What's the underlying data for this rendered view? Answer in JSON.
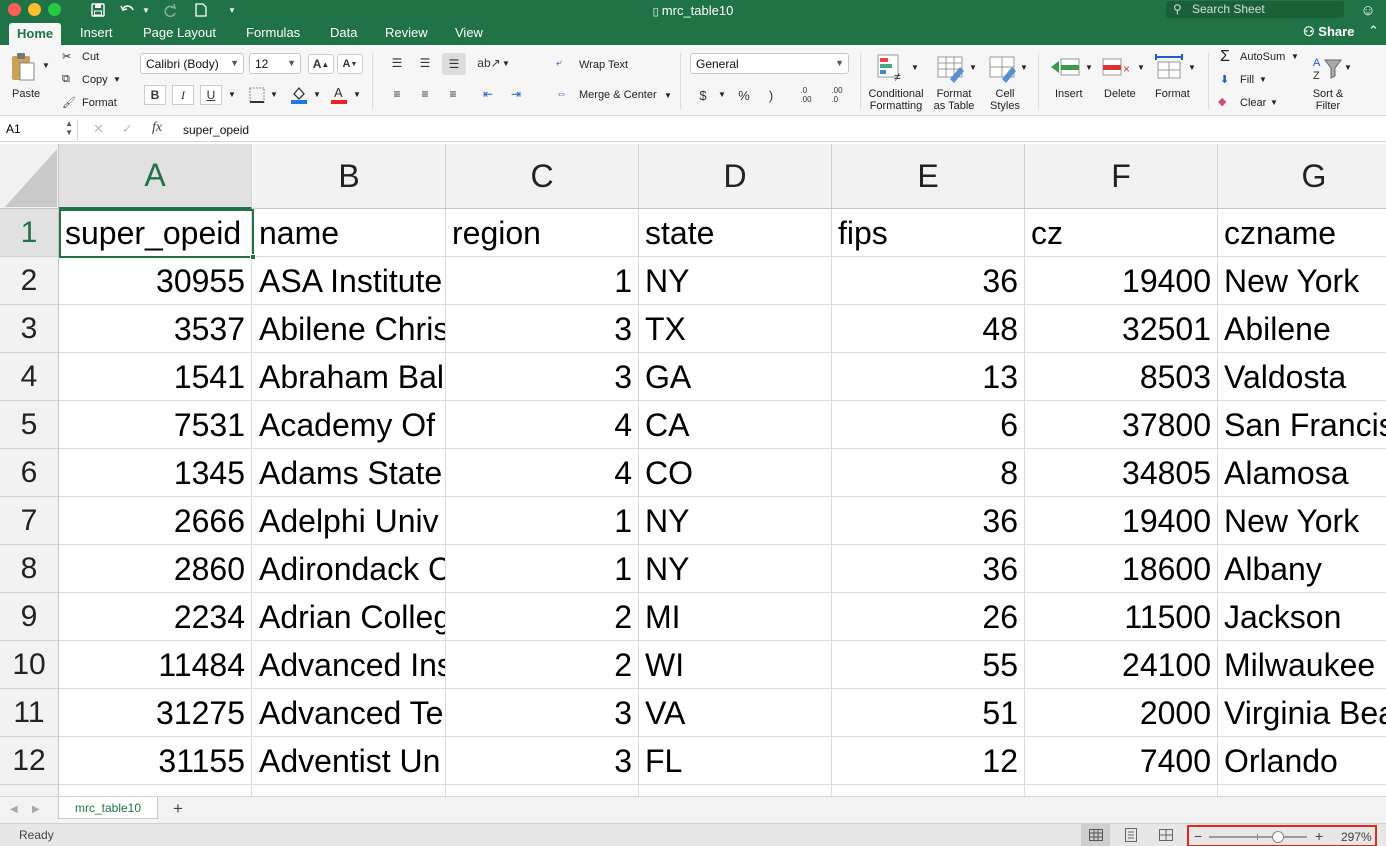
{
  "window": {
    "title": "mrc_table10",
    "search_placeholder": "Search Sheet",
    "share_label": "Share"
  },
  "ribbon_tabs": [
    "Home",
    "Insert",
    "Page Layout",
    "Formulas",
    "Data",
    "Review",
    "View"
  ],
  "clipboard": {
    "paste": "Paste",
    "cut": "Cut",
    "copy": "Copy",
    "format": "Format"
  },
  "font": {
    "name": "Calibri (Body)",
    "size": "12",
    "bold": "B",
    "italic": "I",
    "underline": "U"
  },
  "alignment": {
    "wrap_text": "Wrap Text",
    "merge_center": "Merge & Center"
  },
  "number": {
    "format": "General",
    "currency": "$",
    "percent": "%",
    "comma": ")",
    "inc_decimal": ".0\n.00",
    "dec_decimal": ".00\n.0"
  },
  "styles": {
    "conditional": "Conditional\nFormatting",
    "format_table": "Format\nas Table",
    "cell_styles": "Cell\nStyles"
  },
  "cells_group": {
    "insert": "Insert",
    "delete": "Delete",
    "format": "Format"
  },
  "editing": {
    "autosum": "AutoSum",
    "fill": "Fill",
    "clear": "Clear",
    "sort_filter": "Sort &\nFilter"
  },
  "formula_bar": {
    "name_box": "A1",
    "fx": "fx",
    "value": "super_opeid"
  },
  "columns": [
    "A",
    "B",
    "C",
    "D",
    "E",
    "F",
    "G"
  ],
  "rows": [
    {
      "n": "1",
      "cells": [
        "super_opeid",
        "name",
        "region",
        "state",
        "fips",
        "cz",
        "czname"
      ]
    },
    {
      "n": "2",
      "cells": [
        "30955",
        "ASA Institute",
        "1",
        "NY",
        "36",
        "19400",
        "New York"
      ]
    },
    {
      "n": "3",
      "cells": [
        "3537",
        "Abilene Chris",
        "3",
        "TX",
        "48",
        "32501",
        "Abilene"
      ]
    },
    {
      "n": "4",
      "cells": [
        "1541",
        "Abraham Bal",
        "3",
        "GA",
        "13",
        "8503",
        "Valdosta"
      ]
    },
    {
      "n": "5",
      "cells": [
        "7531",
        "Academy Of .",
        "4",
        "CA",
        "6",
        "37800",
        "San Francis"
      ]
    },
    {
      "n": "6",
      "cells": [
        "1345",
        "Adams State",
        "4",
        "CO",
        "8",
        "34805",
        "Alamosa"
      ]
    },
    {
      "n": "7",
      "cells": [
        "2666",
        "Adelphi Univ",
        "1",
        "NY",
        "36",
        "19400",
        "New York"
      ]
    },
    {
      "n": "8",
      "cells": [
        "2860",
        "Adirondack C",
        "1",
        "NY",
        "36",
        "18600",
        "Albany"
      ]
    },
    {
      "n": "9",
      "cells": [
        "2234",
        "Adrian Colleg",
        "2",
        "MI",
        "26",
        "11500",
        "Jackson"
      ]
    },
    {
      "n": "10",
      "cells": [
        "11484",
        "Advanced Ins",
        "2",
        "WI",
        "55",
        "24100",
        "Milwaukee"
      ]
    },
    {
      "n": "11",
      "cells": [
        "31275",
        "Advanced Te",
        "3",
        "VA",
        "51",
        "2000",
        "Virginia Bea"
      ]
    },
    {
      "n": "12",
      "cells": [
        "31155",
        "Adventist Un",
        "3",
        "FL",
        "12",
        "7400",
        "Orlando"
      ]
    }
  ],
  "sheet_tabs": [
    "mrc_table10"
  ],
  "status": {
    "text": "Ready",
    "zoom": "297%",
    "zoom_fraction": 0.7
  },
  "colors": {
    "accent": "#207346",
    "highlight_box": "#e0281e"
  }
}
